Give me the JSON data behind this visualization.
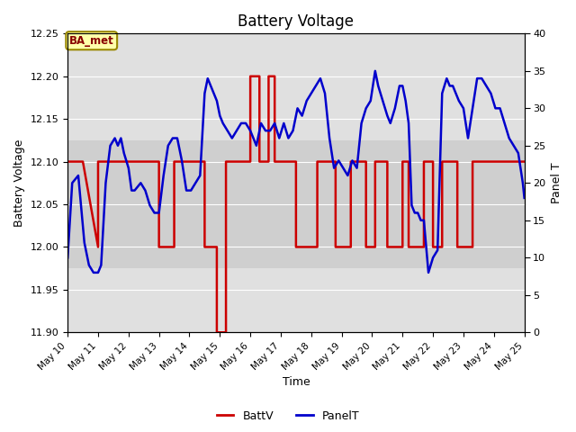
{
  "title": "Battery Voltage",
  "xlabel": "Time",
  "ylabel_left": "Battery Voltage",
  "ylabel_right": "Panel T",
  "ylim_left": [
    11.9,
    12.25
  ],
  "ylim_right": [
    0,
    40
  ],
  "background_color": "#ffffff",
  "plot_bg_color": "#e0e0e0",
  "annotation_box": "BA_met",
  "x_ticks_pos": [
    10,
    11,
    12,
    13,
    14,
    15,
    16,
    17,
    18,
    19,
    20,
    21,
    22,
    23,
    24,
    25
  ],
  "x_ticks_labels": [
    "May 10",
    "May 11",
    "May 12",
    "May 13",
    "May 14",
    "May 15",
    "May 16",
    "May 17",
    "May 18",
    "May 19",
    "May 20",
    "May 21",
    "May 22",
    "May 23",
    "May 24",
    "May 25"
  ],
  "battv_color": "#cc0000",
  "panelt_color": "#0000cc",
  "legend_labels": [
    "BattV",
    "PanelT"
  ],
  "battv_data": [
    [
      10.0,
      12.1
    ],
    [
      10.5,
      12.1
    ],
    [
      11.0,
      12.0
    ],
    [
      11.0,
      12.1
    ],
    [
      11.5,
      12.1
    ],
    [
      12.0,
      12.1
    ],
    [
      12.5,
      12.1
    ],
    [
      13.0,
      12.1
    ],
    [
      13.0,
      12.0
    ],
    [
      13.5,
      12.0
    ],
    [
      13.5,
      12.1
    ],
    [
      14.0,
      12.1
    ],
    [
      14.5,
      12.1
    ],
    [
      14.5,
      12.0
    ],
    [
      14.9,
      12.0
    ],
    [
      14.9,
      11.9
    ],
    [
      15.2,
      11.9
    ],
    [
      15.2,
      12.1
    ],
    [
      15.5,
      12.1
    ],
    [
      16.0,
      12.1
    ],
    [
      16.0,
      12.2
    ],
    [
      16.3,
      12.2
    ],
    [
      16.3,
      12.1
    ],
    [
      16.6,
      12.1
    ],
    [
      16.6,
      12.2
    ],
    [
      16.8,
      12.2
    ],
    [
      16.8,
      12.1
    ],
    [
      17.5,
      12.1
    ],
    [
      17.5,
      12.0
    ],
    [
      18.2,
      12.0
    ],
    [
      18.2,
      12.1
    ],
    [
      18.8,
      12.1
    ],
    [
      18.8,
      12.0
    ],
    [
      19.3,
      12.0
    ],
    [
      19.3,
      12.1
    ],
    [
      19.8,
      12.1
    ],
    [
      19.8,
      12.0
    ],
    [
      20.1,
      12.0
    ],
    [
      20.1,
      12.1
    ],
    [
      20.5,
      12.1
    ],
    [
      20.5,
      12.0
    ],
    [
      21.0,
      12.0
    ],
    [
      21.0,
      12.1
    ],
    [
      21.2,
      12.1
    ],
    [
      21.2,
      12.0
    ],
    [
      21.7,
      12.0
    ],
    [
      21.7,
      12.1
    ],
    [
      22.0,
      12.1
    ],
    [
      22.0,
      12.0
    ],
    [
      22.3,
      12.0
    ],
    [
      22.3,
      12.1
    ],
    [
      22.8,
      12.1
    ],
    [
      22.8,
      12.0
    ],
    [
      23.3,
      12.0
    ],
    [
      23.3,
      12.1
    ],
    [
      25.0,
      12.1
    ]
  ],
  "panelt_data": [
    [
      10.0,
      10
    ],
    [
      10.15,
      20
    ],
    [
      10.35,
      21
    ],
    [
      10.55,
      12
    ],
    [
      10.7,
      9
    ],
    [
      10.85,
      8
    ],
    [
      11.0,
      8
    ],
    [
      11.1,
      9
    ],
    [
      11.25,
      20
    ],
    [
      11.4,
      25
    ],
    [
      11.55,
      26
    ],
    [
      11.65,
      25
    ],
    [
      11.75,
      26
    ],
    [
      11.85,
      24
    ],
    [
      12.0,
      22
    ],
    [
      12.1,
      19
    ],
    [
      12.2,
      19
    ],
    [
      12.4,
      20
    ],
    [
      12.55,
      19
    ],
    [
      12.7,
      17
    ],
    [
      12.85,
      16
    ],
    [
      13.0,
      16
    ],
    [
      13.15,
      21
    ],
    [
      13.3,
      25
    ],
    [
      13.45,
      26
    ],
    [
      13.6,
      26
    ],
    [
      13.75,
      23
    ],
    [
      13.9,
      19
    ],
    [
      14.05,
      19
    ],
    [
      14.2,
      20
    ],
    [
      14.35,
      21
    ],
    [
      14.5,
      32
    ],
    [
      14.6,
      34
    ],
    [
      14.7,
      33
    ],
    [
      14.8,
      32
    ],
    [
      14.9,
      31
    ],
    [
      15.0,
      29
    ],
    [
      15.1,
      28
    ],
    [
      15.25,
      27
    ],
    [
      15.4,
      26
    ],
    [
      15.55,
      27
    ],
    [
      15.7,
      28
    ],
    [
      15.85,
      28
    ],
    [
      16.0,
      27
    ],
    [
      16.1,
      26
    ],
    [
      16.2,
      25
    ],
    [
      16.35,
      28
    ],
    [
      16.5,
      27
    ],
    [
      16.65,
      27
    ],
    [
      16.8,
      28
    ],
    [
      16.95,
      26
    ],
    [
      17.1,
      28
    ],
    [
      17.25,
      26
    ],
    [
      17.4,
      27
    ],
    [
      17.55,
      30
    ],
    [
      17.7,
      29
    ],
    [
      17.85,
      31
    ],
    [
      18.0,
      32
    ],
    [
      18.15,
      33
    ],
    [
      18.3,
      34
    ],
    [
      18.45,
      32
    ],
    [
      18.6,
      26
    ],
    [
      18.75,
      22
    ],
    [
      18.9,
      23
    ],
    [
      19.05,
      22
    ],
    [
      19.2,
      21
    ],
    [
      19.35,
      23
    ],
    [
      19.5,
      22
    ],
    [
      19.65,
      28
    ],
    [
      19.8,
      30
    ],
    [
      19.95,
      31
    ],
    [
      20.1,
      35
    ],
    [
      20.2,
      33
    ],
    [
      20.35,
      31
    ],
    [
      20.5,
      29
    ],
    [
      20.6,
      28
    ],
    [
      20.75,
      30
    ],
    [
      20.9,
      33
    ],
    [
      21.0,
      33
    ],
    [
      21.1,
      31
    ],
    [
      21.2,
      28
    ],
    [
      21.3,
      17
    ],
    [
      21.4,
      16
    ],
    [
      21.5,
      16
    ],
    [
      21.6,
      15
    ],
    [
      21.7,
      15
    ],
    [
      21.85,
      8
    ],
    [
      22.0,
      10
    ],
    [
      22.15,
      11
    ],
    [
      22.3,
      32
    ],
    [
      22.45,
      34
    ],
    [
      22.55,
      33
    ],
    [
      22.65,
      33
    ],
    [
      22.75,
      32
    ],
    [
      22.85,
      31
    ],
    [
      23.0,
      30
    ],
    [
      23.15,
      26
    ],
    [
      23.3,
      30
    ],
    [
      23.45,
      34
    ],
    [
      23.6,
      34
    ],
    [
      23.75,
      33
    ],
    [
      23.9,
      32
    ],
    [
      24.05,
      30
    ],
    [
      24.2,
      30
    ],
    [
      24.35,
      28
    ],
    [
      24.5,
      26
    ],
    [
      24.65,
      25
    ],
    [
      24.8,
      24
    ],
    [
      24.95,
      20
    ],
    [
      25.0,
      18
    ]
  ]
}
